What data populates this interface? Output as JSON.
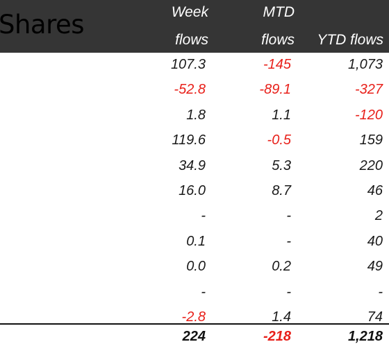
{
  "title": "Shares",
  "headers": {
    "week_line1": "Week",
    "week_line2": "flows",
    "mtd_line1": "MTD",
    "mtd_line2": "flows",
    "ytd": "YTD flows"
  },
  "colors": {
    "header_bg": "#353535",
    "negative": "#e8201a"
  },
  "rows": [
    {
      "week": "107.3",
      "mtd": "-145",
      "ytd": "1,073"
    },
    {
      "week": "-52.8",
      "mtd": "-89.1",
      "ytd": "-327"
    },
    {
      "week": "1.8",
      "mtd": "1.1",
      "ytd": "-120"
    },
    {
      "week": "119.6",
      "mtd": "-0.5",
      "ytd": "159"
    },
    {
      "week": "34.9",
      "mtd": "5.3",
      "ytd": "220"
    },
    {
      "week": "16.0",
      "mtd": "8.7",
      "ytd": "46"
    },
    {
      "week": "-",
      "mtd": "-",
      "ytd": "2"
    },
    {
      "week": "0.1",
      "mtd": "-",
      "ytd": "40"
    },
    {
      "week": "0.0",
      "mtd": "0.2",
      "ytd": "49"
    },
    {
      "week": "-",
      "mtd": "-",
      "ytd": "-"
    },
    {
      "week": "-2.8",
      "mtd": "1.4",
      "ytd": "74"
    }
  ],
  "total": {
    "week": "224",
    "mtd": "-218",
    "ytd": "1,218"
  }
}
